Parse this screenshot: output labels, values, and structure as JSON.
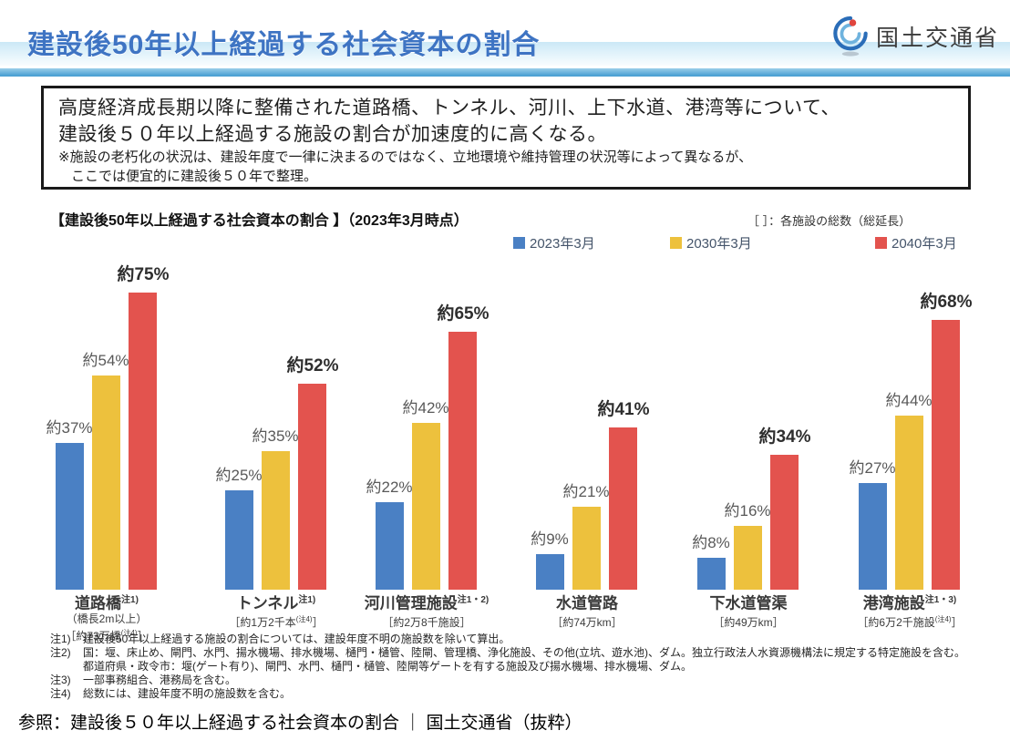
{
  "header": {
    "title": "建設後50年以上経過する社会資本の割合",
    "logo_text": "国土交通省"
  },
  "summary_box": {
    "line1": "高度経済成長期以降に整備された道路橋、トンネル、河川、上下水道、港湾等について、",
    "line2": "建設後５０年以上経過する施設の割合が加速度的に高くなる。",
    "note1": "※施設の老朽化の状況は、建設年度で一律に決まるのではなく、立地環境や維持管理の状況等によって異なるが、",
    "note2": "ここでは便宜的に建設後５０年で整理。"
  },
  "chart_header": {
    "title": "【建設後50年以上経過する社会資本の割合 】（2023年3月時点）",
    "bracket_note": "［ ］：各施設の総数（総延長）"
  },
  "chart_data": {
    "type": "bar",
    "title": "建設後50年以上経過する社会資本の割合（2023年3月時点）",
    "unit": "%",
    "ylim": [
      0,
      80
    ],
    "grid": false,
    "legend_position": "top",
    "categories": [
      {
        "name": "道路橋",
        "note": "注1)",
        "sub": "（橋長2m以上）",
        "total_pre": "［約73万橋",
        "total_note": "(注4)",
        "total_post": "］"
      },
      {
        "name": "トンネル",
        "note": "注1)",
        "sub": "",
        "total_pre": "［約1万2千本",
        "total_note": "(注4)",
        "total_post": "］"
      },
      {
        "name": "河川管理施設",
        "note": "注1・2)",
        "sub": "",
        "total_pre": "［約2万8千施設",
        "total_note": "",
        "total_post": "］"
      },
      {
        "name": "水道管路",
        "note": "",
        "sub": "",
        "total_pre": "［約74万km",
        "total_note": "",
        "total_post": "］"
      },
      {
        "name": "下水道管渠",
        "note": "",
        "sub": "",
        "total_pre": "［約49万km",
        "total_note": "",
        "total_post": "］"
      },
      {
        "name": "港湾施設",
        "note": "注1・3)",
        "sub": "",
        "total_pre": "［約6万2千施設",
        "total_note": "(注4)",
        "total_post": "］"
      }
    ],
    "series": [
      {
        "name": "2023年3月",
        "color": "#4a80c4",
        "values": [
          37,
          25,
          22,
          9,
          8,
          27
        ],
        "labels": [
          "約37%",
          "約25%",
          "約22%",
          "約9%",
          "約8%",
          "約27%"
        ]
      },
      {
        "name": "2030年3月",
        "color": "#edc13d",
        "values": [
          54,
          35,
          42,
          21,
          16,
          44
        ],
        "labels": [
          "約54%",
          "約35%",
          "約42%",
          "約21%",
          "約16%",
          "約44%"
        ]
      },
      {
        "name": "2040年3月",
        "color": "#e3534e",
        "values": [
          75,
          52,
          65,
          41,
          34,
          68
        ],
        "labels": [
          "約75%",
          "約52%",
          "約65%",
          "約41%",
          "約34%",
          "約68%"
        ]
      }
    ]
  },
  "footnotes": [
    {
      "label": "注1)",
      "text": "建設後50年以上経過する施設の割合については、建設年度不明の施設数を除いて算出。"
    },
    {
      "label": "注2)",
      "text": "国：堰、床止め、閘門、水門、揚水機場、排水機場、樋門・樋管、陸閘、管理橋、浄化施設、その他(立坑、遊水池)、ダム。独立行政法人水資源機構法に規定する特定施設を含む。"
    },
    {
      "label": "",
      "text": "都道府県・政令市：堰(ゲート有り)、閘門、水門、樋門・樋管、陸閘等ゲートを有する施設及び揚水機場、排水機場、ダム。"
    },
    {
      "label": "注3)",
      "text": "一部事務組合、港務局を含む。"
    },
    {
      "label": "注4)",
      "text": "総数には、建設年度不明の施設数を含む。"
    }
  ],
  "caption": "参照：建設後５０年以上経過する社会資本の割合 ｜ 国土交通省（抜粋）"
}
